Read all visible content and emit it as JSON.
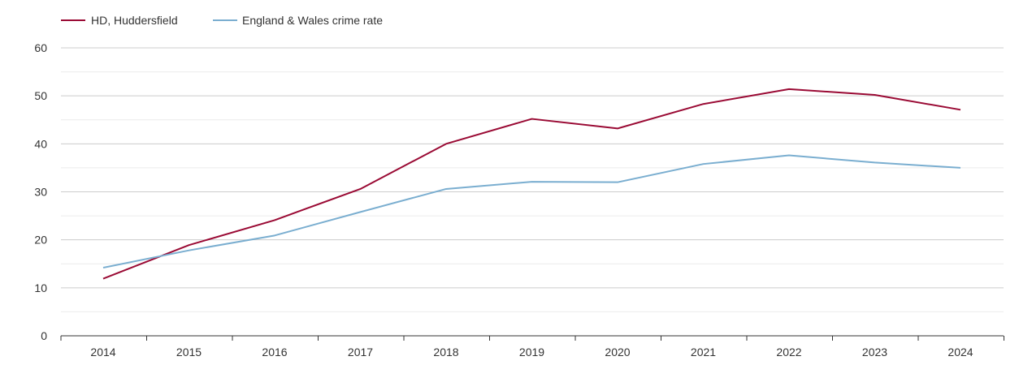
{
  "colors": {
    "series_1": "#9a0a34",
    "series_2": "#7aaed0",
    "grid_major": "#cccccc",
    "grid_minor": "#ebebeb",
    "axis": "#333333",
    "text": "#333333"
  },
  "chart_data": {
    "type": "line",
    "title": "",
    "xlabel": "",
    "ylabel": "",
    "x": [
      "2014",
      "2015",
      "2016",
      "2017",
      "2018",
      "2019",
      "2020",
      "2021",
      "2022",
      "2023",
      "2024"
    ],
    "ylim": [
      0,
      60
    ],
    "yticks": [
      0,
      10,
      20,
      30,
      40,
      50,
      60
    ],
    "grid": true,
    "legend_position": "top-left",
    "series": [
      {
        "name": "HD, Huddersfield",
        "color": "#9a0a34",
        "values": [
          11.9,
          18.9,
          24.1,
          30.6,
          40.0,
          45.2,
          43.2,
          48.3,
          51.4,
          50.2,
          47.1
        ]
      },
      {
        "name": "England & Wales crime rate",
        "color": "#7aaed0",
        "values": [
          14.2,
          17.8,
          20.9,
          25.8,
          30.6,
          32.1,
          32.0,
          35.8,
          37.6,
          36.1,
          35.0
        ]
      }
    ]
  }
}
